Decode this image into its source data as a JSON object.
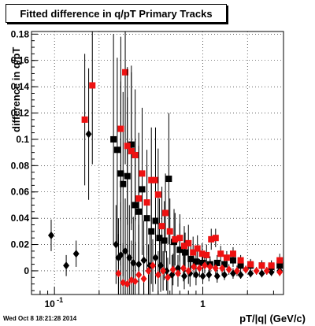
{
  "chart_data": {
    "type": "scatter",
    "title": "Fitted difference in q/pT  Primary Tracks",
    "xlabel": "pT/|q| (GeV/c)",
    "ylabel": "difference in q/pT",
    "x_scale": "log",
    "xlim": [
      0.07,
      3.5
    ],
    "ylim": [
      -0.018,
      0.182
    ],
    "grid": true,
    "y_ticks": [
      "0",
      "0.02",
      "0.04",
      "0.06",
      "0.08",
      "0.1",
      "0.12",
      "0.14",
      "0.16",
      "0.18"
    ],
    "x_ticks": [
      "10",
      "1"
    ],
    "x_tick_exponents": [
      "-1",
      ""
    ],
    "series": [
      {
        "color": "#000000",
        "marker": "diamond",
        "points": [
          {
            "x": 0.095,
            "y": 0.027,
            "err": 0.012
          },
          {
            "x": 0.12,
            "y": 0.004,
            "err": 0.008
          },
          {
            "x": 0.14,
            "y": 0.013,
            "err": 0.01
          },
          {
            "x": 0.17,
            "y": 0.104,
            "err": 0.05
          },
          {
            "x": 0.26,
            "y": 0.02,
            "err": 0.03
          },
          {
            "x": 0.27,
            "y": 0.01,
            "err": 0.03
          },
          {
            "x": 0.28,
            "y": 0.012,
            "err": 0.04
          },
          {
            "x": 0.3,
            "y": 0.015,
            "err": 0.04
          },
          {
            "x": 0.32,
            "y": 0.01,
            "err": 0.04
          },
          {
            "x": 0.34,
            "y": 0.006,
            "err": 0.035
          },
          {
            "x": 0.37,
            "y": 0.005,
            "err": 0.03
          },
          {
            "x": 0.4,
            "y": 0.008,
            "err": 0.03
          },
          {
            "x": 0.44,
            "y": 0.004,
            "err": 0.025
          },
          {
            "x": 0.48,
            "y": 0.01,
            "err": 0.02
          },
          {
            "x": 0.52,
            "y": 0.004,
            "err": 0.02
          },
          {
            "x": 0.57,
            "y": 0.0,
            "err": 0.015
          },
          {
            "x": 0.62,
            "y": -0.003,
            "err": 0.015
          },
          {
            "x": 0.68,
            "y": 0.002,
            "err": 0.01
          },
          {
            "x": 0.75,
            "y": -0.004,
            "err": 0.01
          },
          {
            "x": 0.82,
            "y": -0.002,
            "err": 0.01
          },
          {
            "x": 0.9,
            "y": -0.003,
            "err": 0.008
          },
          {
            "x": 1.0,
            "y": -0.004,
            "err": 0.006
          },
          {
            "x": 1.1,
            "y": -0.003,
            "err": 0.005
          },
          {
            "x": 1.25,
            "y": -0.004,
            "err": 0.005
          },
          {
            "x": 1.4,
            "y": -0.003,
            "err": 0.004
          },
          {
            "x": 1.6,
            "y": -0.002,
            "err": 0.004
          },
          {
            "x": 1.8,
            "y": -0.003,
            "err": 0.003
          },
          {
            "x": 2.1,
            "y": -0.002,
            "err": 0.003
          },
          {
            "x": 2.5,
            "y": -0.002,
            "err": 0.003
          },
          {
            "x": 2.9,
            "y": -0.001,
            "err": 0.003
          },
          {
            "x": 3.3,
            "y": 0.0,
            "err": 0.003
          }
        ]
      },
      {
        "color": "#000000",
        "marker": "square",
        "points": [
          {
            "x": 0.25,
            "y": 0.1,
            "err": 0.08
          },
          {
            "x": 0.265,
            "y": 0.092,
            "err": 0.07
          },
          {
            "x": 0.28,
            "y": 0.074,
            "err": 0.07
          },
          {
            "x": 0.29,
            "y": 0.066,
            "err": 0.07
          },
          {
            "x": 0.31,
            "y": 0.072,
            "err": 0.06
          },
          {
            "x": 0.33,
            "y": 0.096,
            "err": 0.06
          },
          {
            "x": 0.35,
            "y": 0.05,
            "err": 0.05
          },
          {
            "x": 0.37,
            "y": 0.045,
            "err": 0.05
          },
          {
            "x": 0.39,
            "y": 0.062,
            "err": 0.05
          },
          {
            "x": 0.42,
            "y": 0.04,
            "err": 0.04
          },
          {
            "x": 0.45,
            "y": 0.03,
            "err": 0.04
          },
          {
            "x": 0.48,
            "y": 0.038,
            "err": 0.035
          },
          {
            "x": 0.51,
            "y": 0.025,
            "err": 0.03
          },
          {
            "x": 0.55,
            "y": 0.023,
            "err": 0.03
          },
          {
            "x": 0.59,
            "y": 0.07,
            "err": 0.05
          },
          {
            "x": 0.64,
            "y": 0.022,
            "err": 0.025
          },
          {
            "x": 0.7,
            "y": 0.016,
            "err": 0.02
          },
          {
            "x": 0.76,
            "y": 0.014,
            "err": 0.015
          },
          {
            "x": 0.83,
            "y": 0.009,
            "err": 0.012
          },
          {
            "x": 0.9,
            "y": 0.007,
            "err": 0.01
          },
          {
            "x": 1.0,
            "y": 0.006,
            "err": 0.008
          },
          {
            "x": 1.12,
            "y": 0.005,
            "err": 0.006
          },
          {
            "x": 1.25,
            "y": 0.006,
            "err": 0.006
          },
          {
            "x": 1.4,
            "y": 0.005,
            "err": 0.005
          },
          {
            "x": 1.6,
            "y": 0.008,
            "err": 0.005
          },
          {
            "x": 1.8,
            "y": 0.004,
            "err": 0.004
          },
          {
            "x": 2.1,
            "y": 0.004,
            "err": 0.004
          },
          {
            "x": 2.5,
            "y": 0.004,
            "err": 0.004
          },
          {
            "x": 2.9,
            "y": 0.003,
            "err": 0.004
          },
          {
            "x": 3.3,
            "y": 0.004,
            "err": 0.004
          }
        ]
      },
      {
        "color": "#ee1111",
        "marker": "square",
        "points": [
          {
            "x": 0.16,
            "y": 0.115,
            "err": 0.05
          },
          {
            "x": 0.18,
            "y": 0.141,
            "err": 0.06
          },
          {
            "x": 0.28,
            "y": 0.108,
            "err": 0.07
          },
          {
            "x": 0.3,
            "y": 0.151,
            "err": 0.07
          },
          {
            "x": 0.31,
            "y": 0.095,
            "err": 0.06
          },
          {
            "x": 0.33,
            "y": 0.091,
            "err": 0.06
          },
          {
            "x": 0.35,
            "y": 0.088,
            "err": 0.05
          },
          {
            "x": 0.37,
            "y": 0.055,
            "err": 0.05
          },
          {
            "x": 0.39,
            "y": 0.074,
            "err": 0.05
          },
          {
            "x": 0.42,
            "y": 0.052,
            "err": 0.04
          },
          {
            "x": 0.45,
            "y": 0.069,
            "err": 0.04
          },
          {
            "x": 0.48,
            "y": 0.069,
            "err": 0.04
          },
          {
            "x": 0.5,
            "y": 0.058,
            "err": 0.035
          },
          {
            "x": 0.53,
            "y": 0.034,
            "err": 0.03
          },
          {
            "x": 0.56,
            "y": 0.044,
            "err": 0.03
          },
          {
            "x": 0.6,
            "y": 0.03,
            "err": 0.025
          },
          {
            "x": 0.65,
            "y": 0.024,
            "err": 0.02
          },
          {
            "x": 0.7,
            "y": 0.025,
            "err": 0.018
          },
          {
            "x": 0.75,
            "y": 0.019,
            "err": 0.015
          },
          {
            "x": 0.8,
            "y": 0.021,
            "err": 0.014
          },
          {
            "x": 0.86,
            "y": 0.014,
            "err": 0.012
          },
          {
            "x": 0.92,
            "y": 0.017,
            "err": 0.01
          },
          {
            "x": 0.99,
            "y": 0.013,
            "err": 0.008
          },
          {
            "x": 1.06,
            "y": 0.012,
            "err": 0.008
          },
          {
            "x": 1.14,
            "y": 0.024,
            "err": 0.008
          },
          {
            "x": 1.22,
            "y": 0.025,
            "err": 0.007
          },
          {
            "x": 1.32,
            "y": 0.013,
            "err": 0.006
          },
          {
            "x": 1.45,
            "y": 0.01,
            "err": 0.005
          },
          {
            "x": 1.6,
            "y": 0.013,
            "err": 0.005
          },
          {
            "x": 1.8,
            "y": 0.008,
            "err": 0.004
          },
          {
            "x": 2.1,
            "y": 0.005,
            "err": 0.004
          },
          {
            "x": 2.5,
            "y": 0.004,
            "err": 0.004
          },
          {
            "x": 2.9,
            "y": 0.004,
            "err": 0.004
          },
          {
            "x": 3.3,
            "y": 0.008,
            "err": 0.005
          }
        ]
      },
      {
        "color": "#ee1111",
        "marker": "diamond",
        "points": [
          {
            "x": 0.27,
            "y": -0.002,
            "err": 0.03
          },
          {
            "x": 0.29,
            "y": -0.009,
            "err": 0.03
          },
          {
            "x": 0.31,
            "y": -0.01,
            "err": 0.03
          },
          {
            "x": 0.33,
            "y": -0.007,
            "err": 0.03
          },
          {
            "x": 0.35,
            "y": -0.008,
            "err": 0.03
          },
          {
            "x": 0.37,
            "y": -0.003,
            "err": 0.025
          },
          {
            "x": 0.4,
            "y": -0.006,
            "err": 0.025
          },
          {
            "x": 0.43,
            "y": 0.0,
            "err": 0.02
          },
          {
            "x": 0.46,
            "y": 0.004,
            "err": 0.02
          },
          {
            "x": 0.5,
            "y": -0.003,
            "err": 0.018
          },
          {
            "x": 0.54,
            "y": 0.0,
            "err": 0.015
          },
          {
            "x": 0.58,
            "y": -0.005,
            "err": 0.015
          },
          {
            "x": 0.63,
            "y": 0.001,
            "err": 0.012
          },
          {
            "x": 0.68,
            "y": -0.002,
            "err": 0.01
          },
          {
            "x": 0.74,
            "y": 0.002,
            "err": 0.01
          },
          {
            "x": 0.8,
            "y": 0.0,
            "err": 0.01
          },
          {
            "x": 0.87,
            "y": 0.003,
            "err": 0.008
          },
          {
            "x": 0.95,
            "y": 0.002,
            "err": 0.007
          },
          {
            "x": 1.03,
            "y": 0.004,
            "err": 0.006
          },
          {
            "x": 1.12,
            "y": 0.003,
            "err": 0.006
          },
          {
            "x": 1.22,
            "y": 0.002,
            "err": 0.005
          },
          {
            "x": 1.35,
            "y": 0.002,
            "err": 0.005
          },
          {
            "x": 1.5,
            "y": 0.001,
            "err": 0.004
          },
          {
            "x": 1.7,
            "y": 0.0,
            "err": 0.004
          },
          {
            "x": 1.95,
            "y": 0.001,
            "err": 0.003
          },
          {
            "x": 2.3,
            "y": 0.0,
            "err": 0.003
          },
          {
            "x": 2.7,
            "y": 0.0,
            "err": 0.003
          },
          {
            "x": 3.3,
            "y": -0.001,
            "err": 0.003
          }
        ]
      }
    ]
  },
  "footer": {
    "timestamp": "Wed Oct  8 18:21:28 2014"
  }
}
